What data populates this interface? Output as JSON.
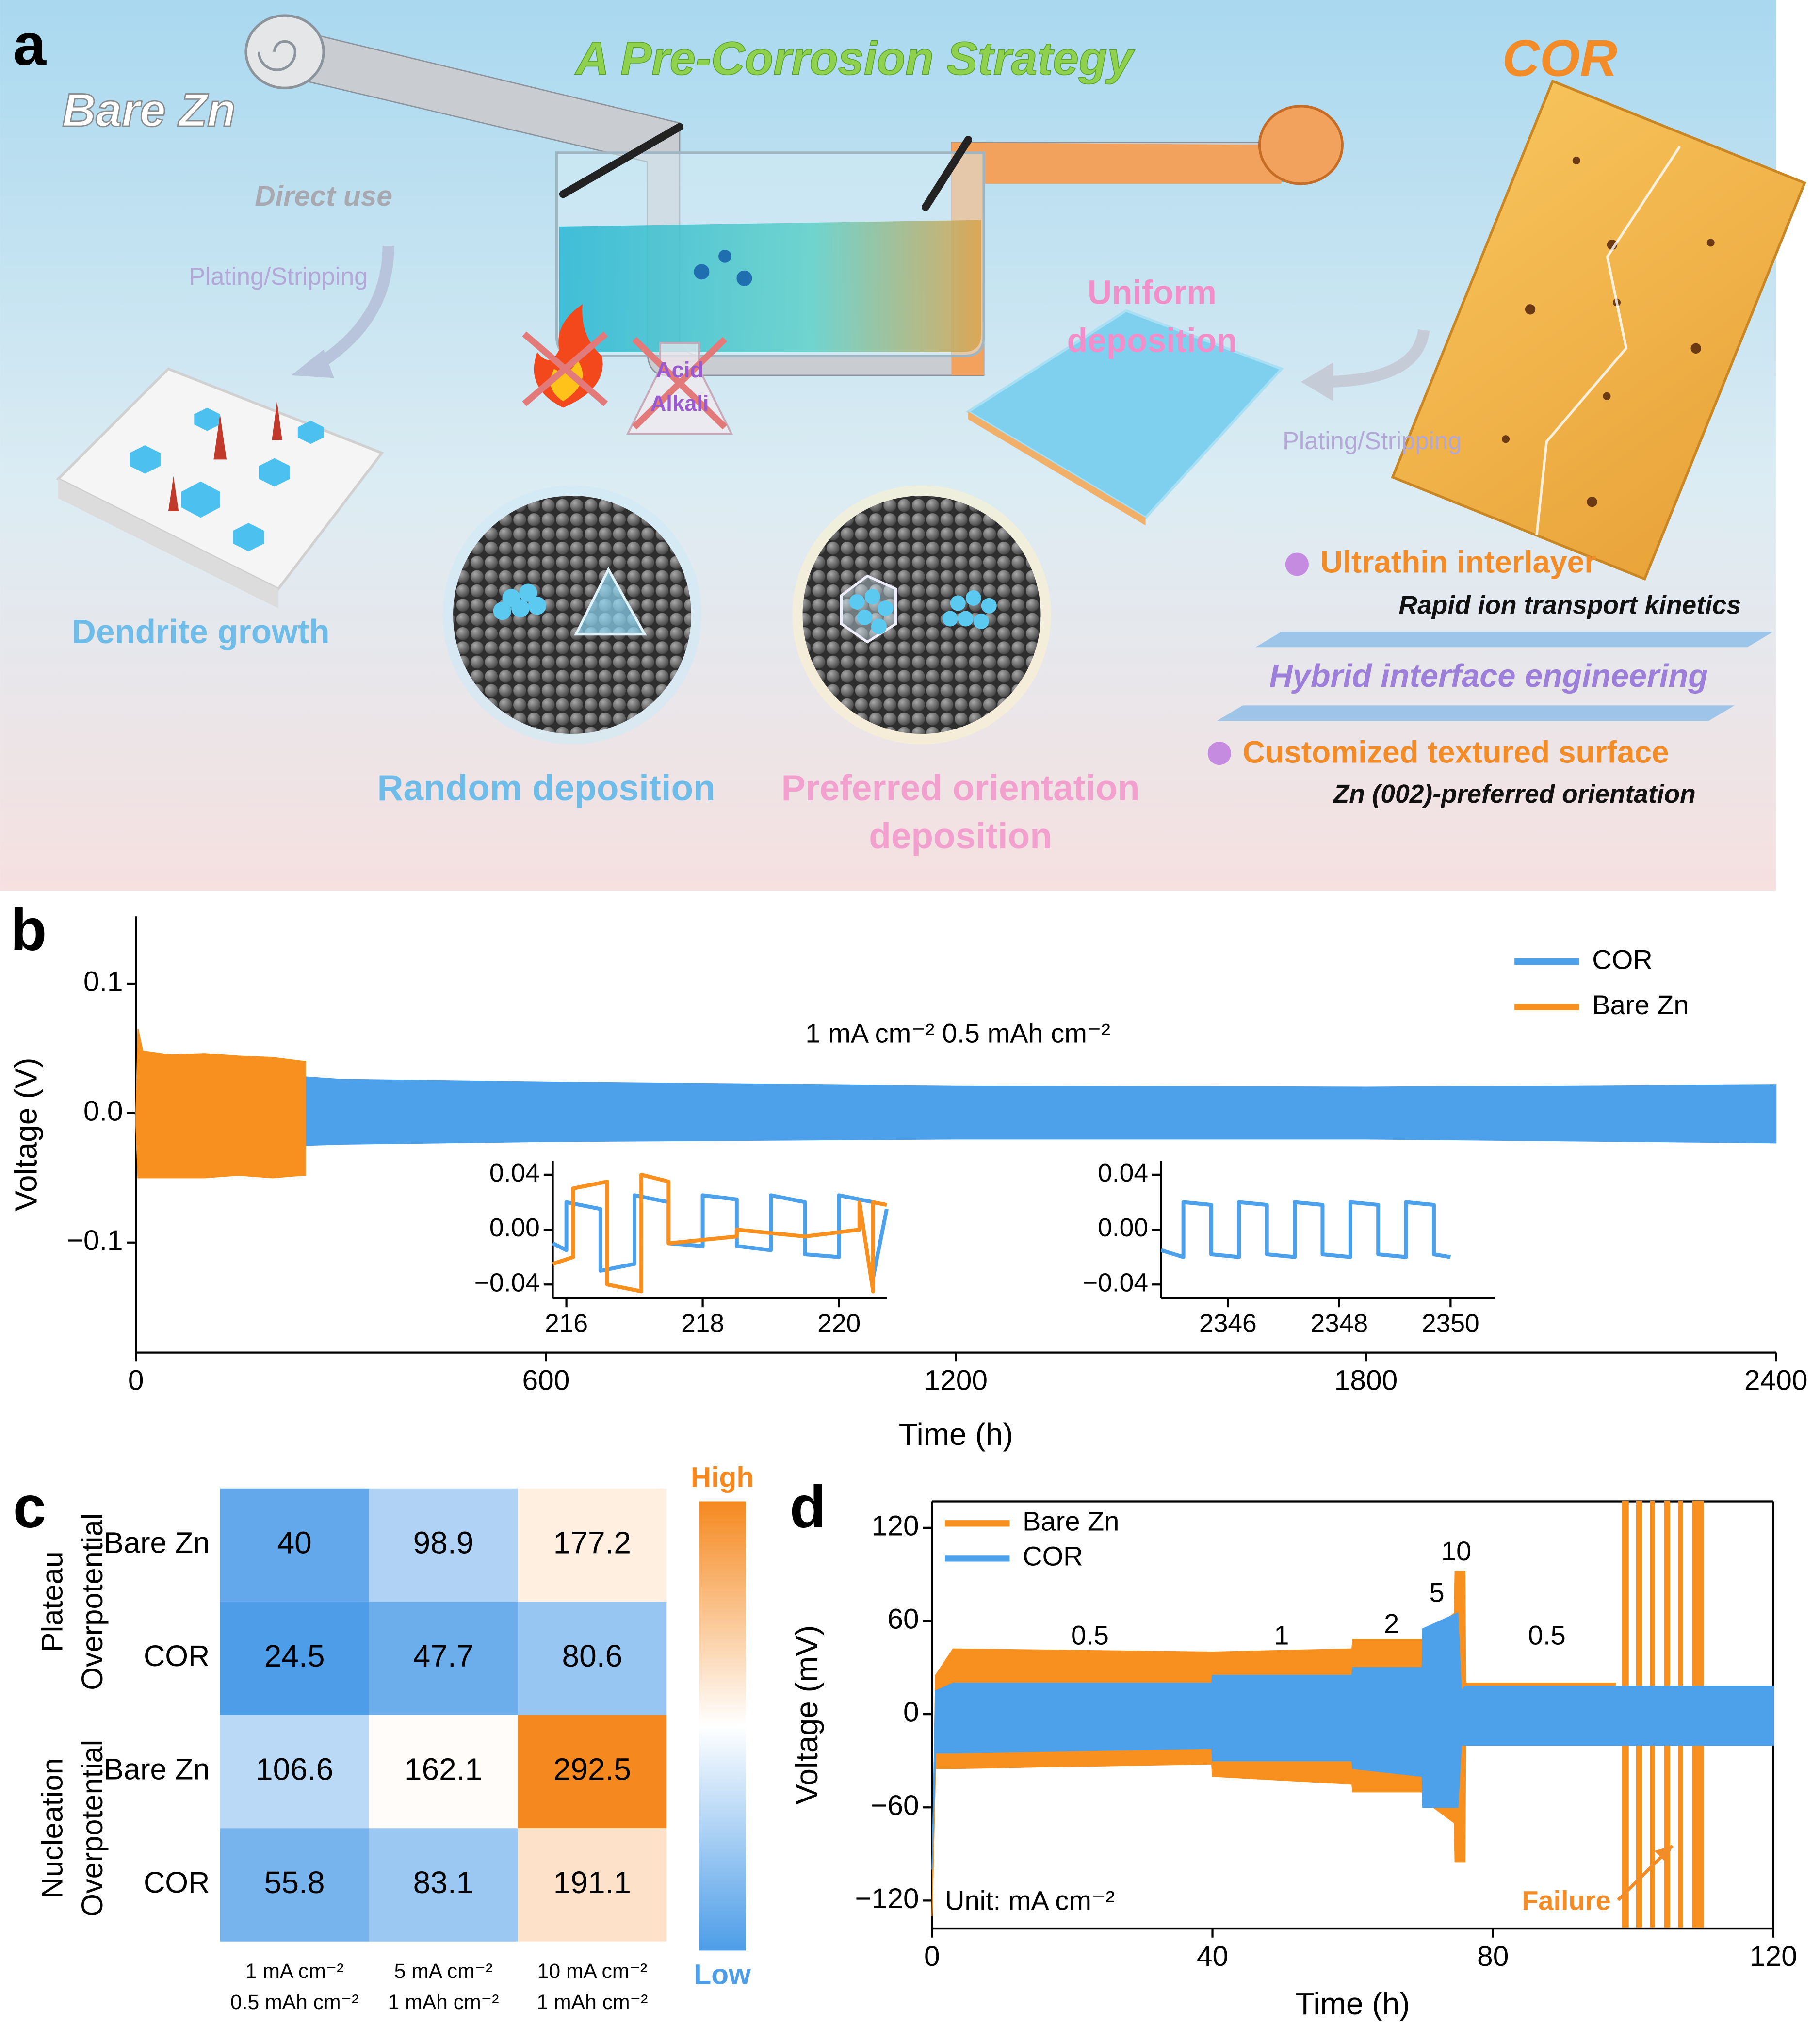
{
  "panel_labels": [
    "a",
    "b",
    "c",
    "d"
  ],
  "schematic": {
    "title": "A Pre-Corrosion Strategy",
    "bare_zn": "Bare Zn",
    "cor": "COR",
    "direct_use": "Direct use",
    "plating_left": "Plating/Stripping",
    "plating_right": "Plating/Stripping",
    "acid": "Acid",
    "alkali": "Alkali",
    "uniform": [
      "Uniform",
      "deposition"
    ],
    "dendrite": "Dendrite growth",
    "random": "Random deposition",
    "preferred": [
      "Preferred orientation",
      "deposition"
    ],
    "feature_1": "Ultrathin interlayer",
    "feature_1_note": "Rapid ion transport kinetics",
    "hybrid": "Hybrid interface engineering",
    "feature_2": "Customized textured surface",
    "feature_2_note": "Zn (002)-preferred orientation"
  },
  "chart_data": [
    {
      "type": "band",
      "xlabel": "Time (h)",
      "ylabel": "Voltage (V)",
      "xlim": [
        0,
        2400
      ],
      "ylim": [
        -0.185,
        0.152
      ],
      "xticks": [
        0,
        600,
        1200,
        1800,
        2400
      ],
      "yticks": [
        {
          "value": -0.1,
          "label": "−0.1"
        },
        {
          "value": 0,
          "label": "0.0"
        },
        0.1
      ],
      "annotations": [
        "1 mA cm⁻² 0.5 mAh cm⁻²"
      ],
      "series": [
        {
          "name": "COR",
          "color": "#4da1ea",
          "x": [
            246,
            300,
            600,
            1200,
            1800,
            2400
          ],
          "upper": [
            0.028,
            0.026,
            0.024,
            0.021,
            0.02,
            0.022
          ],
          "lower": [
            -0.025,
            -0.024,
            -0.022,
            -0.02,
            -0.02,
            -0.023
          ]
        },
        {
          "name": "Bare Zn",
          "color": "#f7901e",
          "x": [
            0,
            3,
            10,
            50,
            100,
            150,
            200,
            245,
            248
          ],
          "upper": [
            0.0,
            0.065,
            0.048,
            0.045,
            0.046,
            0.044,
            0.043,
            0.04,
            0.04
          ],
          "lower": [
            -0.01,
            -0.05,
            -0.05,
            -0.05,
            -0.05,
            -0.048,
            -0.05,
            -0.048,
            -0.048
          ]
        }
      ],
      "insets": [
        {
          "xlim": [
            215.8,
            220.7
          ],
          "ylim": [
            -0.05,
            0.05
          ],
          "xticks": [
            216,
            218,
            220
          ],
          "yticks": [
            {
              "value": -0.04,
              "label": "−0.04"
            },
            {
              "value": 0,
              "label": "0.00"
            },
            0.04
          ],
          "series": [
            {
              "color": "#4da1ea",
              "x": [
                215.8,
                216.0,
                216.0,
                216.5,
                216.5,
                217.0,
                217.0,
                217.5,
                217.5,
                218.0,
                218.0,
                218.5,
                218.5,
                219.0,
                219.0,
                219.5,
                219.5,
                220.0,
                220.0,
                220.5,
                220.5,
                220.7
              ],
              "values": [
                -0.01,
                -0.015,
                0.02,
                0.015,
                -0.03,
                -0.025,
                0.025,
                0.02,
                -0.01,
                -0.012,
                0.025,
                0.022,
                -0.012,
                -0.015,
                0.025,
                0.02,
                -0.018,
                -0.02,
                0.025,
                0.02,
                -0.035,
                0.015
              ]
            },
            {
              "color": "#f7901e",
              "x": [
                215.8,
                216.1,
                216.1,
                216.6,
                216.6,
                217.1,
                217.1,
                217.5,
                217.5,
                218.5,
                218.5,
                219.5,
                219.5,
                220.3,
                220.3,
                220.5,
                220.5,
                220.7
              ],
              "values": [
                -0.025,
                -0.02,
                0.03,
                0.035,
                -0.04,
                -0.045,
                0.04,
                0.035,
                -0.01,
                -0.005,
                0.0,
                -0.005,
                -0.005,
                0.0,
                0.02,
                -0.045,
                0.02,
                0.018
              ]
            }
          ]
        },
        {
          "xlim": [
            2344.8,
            2350.8
          ],
          "ylim": [
            -0.05,
            0.05
          ],
          "xticks": [
            2346,
            2348,
            2350
          ],
          "yticks": [
            {
              "value": -0.04,
              "label": "−0.04"
            },
            {
              "value": 0,
              "label": "0.00"
            },
            0.04
          ],
          "series": [
            {
              "color": "#4da1ea",
              "x": [
                2344.8,
                2345.2,
                2345.2,
                2345.7,
                2345.7,
                2346.2,
                2346.2,
                2346.7,
                2346.7,
                2347.2,
                2347.2,
                2347.7,
                2347.7,
                2348.2,
                2348.2,
                2348.7,
                2348.7,
                2349.2,
                2349.2,
                2349.7,
                2349.7,
                2350.0
              ],
              "values": [
                -0.015,
                -0.02,
                0.02,
                0.018,
                -0.018,
                -0.02,
                0.02,
                0.018,
                -0.018,
                -0.02,
                0.02,
                0.018,
                -0.018,
                -0.02,
                0.02,
                0.018,
                -0.018,
                -0.02,
                0.02,
                0.018,
                -0.018,
                -0.02
              ]
            }
          ]
        }
      ]
    },
    {
      "type": "heatmap",
      "rows": [
        "Bare Zn",
        "COR",
        "Bare Zn",
        "COR"
      ],
      "row_groups": [
        [
          "Plateau",
          "Overpotential"
        ],
        [
          "Nucleation",
          "Overpotential"
        ]
      ],
      "columns": [
        [
          "1 mA cm⁻²",
          "0.5 mAh cm⁻²"
        ],
        [
          "5 mA cm⁻²",
          "1 mAh cm⁻²"
        ],
        [
          "10 mA cm⁻²",
          "1 mAh cm⁻²"
        ]
      ],
      "values": [
        [
          40,
          98.9,
          177.2
        ],
        [
          24.5,
          47.7,
          80.6
        ],
        [
          106.6,
          162.1,
          292.5
        ],
        [
          55.8,
          83.1,
          191.1
        ]
      ],
      "colors": [
        "#4d9de8",
        "#ffffff",
        "#f5891f"
      ],
      "colorbar": {
        "high_label": "High",
        "low_label": "Low"
      }
    },
    {
      "type": "band",
      "xlabel": "Time (h)",
      "ylabel": "Voltage (mV)",
      "xlim": [
        0,
        120
      ],
      "ylim": [
        -138,
        137
      ],
      "xticks": [
        0,
        40,
        80,
        120
      ],
      "yticks": [
        {
          "value": -120,
          "label": "−120"
        },
        {
          "value": -60,
          "label": "−60"
        },
        0,
        60,
        120
      ],
      "annotations": [
        "0.5",
        "1",
        "2",
        "5",
        "10",
        "0.5",
        "Unit: mA cm⁻²",
        "Failure"
      ],
      "series": [
        {
          "name": "Bare Zn",
          "color": "#f7901e",
          "x": [
            0,
            0.5,
            3,
            39.9,
            40,
            59.9,
            60,
            69.9,
            70,
            74.5,
            74.6,
            76,
            76.1,
            97.5,
            98,
            98.5,
            99.3,
            99.8,
            100.5,
            101.2,
            101.7,
            102.5,
            103,
            103.5,
            104.5,
            105.2,
            105.7,
            106.5,
            107,
            107.5,
            108.5,
            110
          ],
          "upper": [
            -130,
            25,
            42,
            40,
            40,
            42,
            48,
            48,
            50,
            65,
            92,
            92,
            20,
            20,
            null,
            137,
            137,
            null,
            137,
            137,
            null,
            137,
            137,
            null,
            137,
            137,
            null,
            137,
            137,
            null,
            137,
            137
          ],
          "lower": [
            -130,
            -35,
            -35,
            -32,
            -40,
            -45,
            -50,
            -50,
            -55,
            -70,
            -95,
            -95,
            -20,
            -20,
            null,
            -137,
            -137,
            null,
            -137,
            -137,
            null,
            -137,
            -137,
            null,
            -137,
            -137,
            null,
            -137,
            -137,
            null,
            -137,
            -137
          ]
        },
        {
          "name": "COR",
          "color": "#4da1ea",
          "x": [
            0,
            0.5,
            3,
            39.9,
            40,
            59.9,
            60,
            69.9,
            70,
            74.9,
            75,
            75.5,
            76,
            120
          ],
          "upper": [
            -100,
            15,
            20,
            20,
            25,
            25,
            30,
            30,
            55,
            65,
            65,
            15,
            18,
            18
          ],
          "lower": [
            -100,
            -25,
            -25,
            -22,
            -30,
            -30,
            -35,
            -40,
            -60,
            -60,
            -60,
            -20,
            -20,
            -20
          ]
        }
      ]
    }
  ]
}
